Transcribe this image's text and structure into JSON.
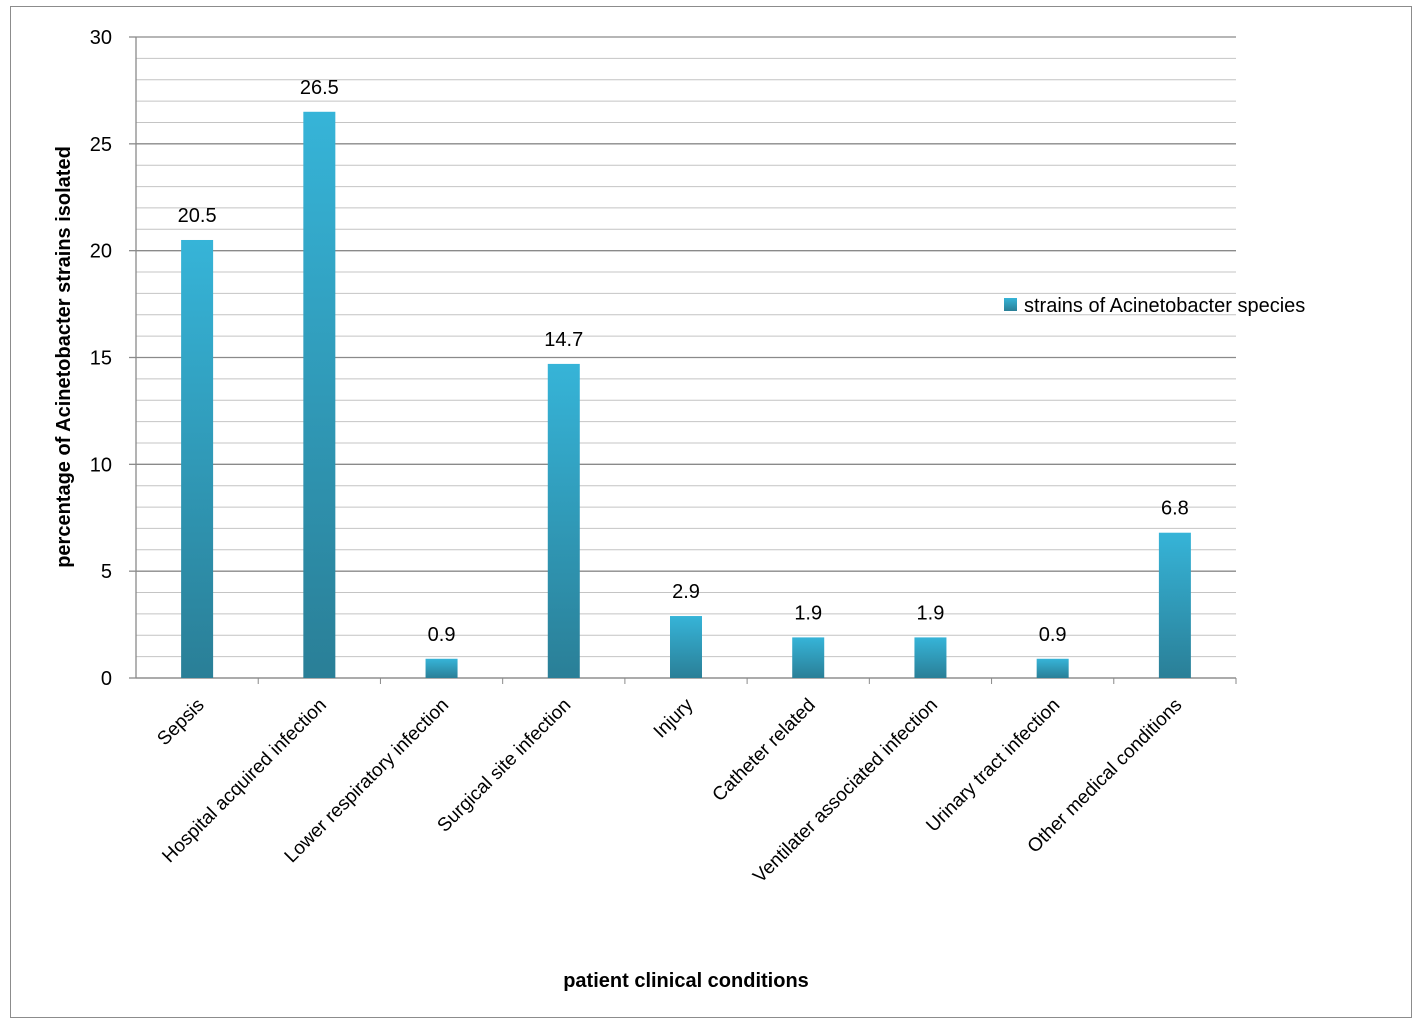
{
  "chart_data": {
    "type": "bar",
    "categories": [
      "Sepsis",
      "Hospital acquired infection",
      "Lower respiratory infection",
      "Surgical site infection",
      "Injury",
      "Catheter related",
      "Ventilater associated infection",
      "Urinary tract infection",
      "Other medical conditions"
    ],
    "series": [
      {
        "name": "strains of Acinetobacter species",
        "values": [
          20.5,
          26.5,
          0.9,
          14.7,
          2.9,
          1.9,
          1.9,
          0.9,
          6.8
        ],
        "color_top": "#36b4d8",
        "color_bottom": "#2a7f97"
      }
    ],
    "data_labels": [
      "20.5",
      "26.5",
      "0.9",
      "14.7",
      "2.9",
      "1.9",
      "1.9",
      "0.9",
      "6.8"
    ],
    "xlabel": "patient clinical conditions",
    "ylabel": "percentage of Acinetobacter strains isolated",
    "ylim": [
      0,
      30
    ],
    "yticks": [
      0,
      5,
      10,
      15,
      20,
      25,
      30
    ],
    "minor_grid_step": 1,
    "grid": true,
    "legend_position": "right"
  }
}
